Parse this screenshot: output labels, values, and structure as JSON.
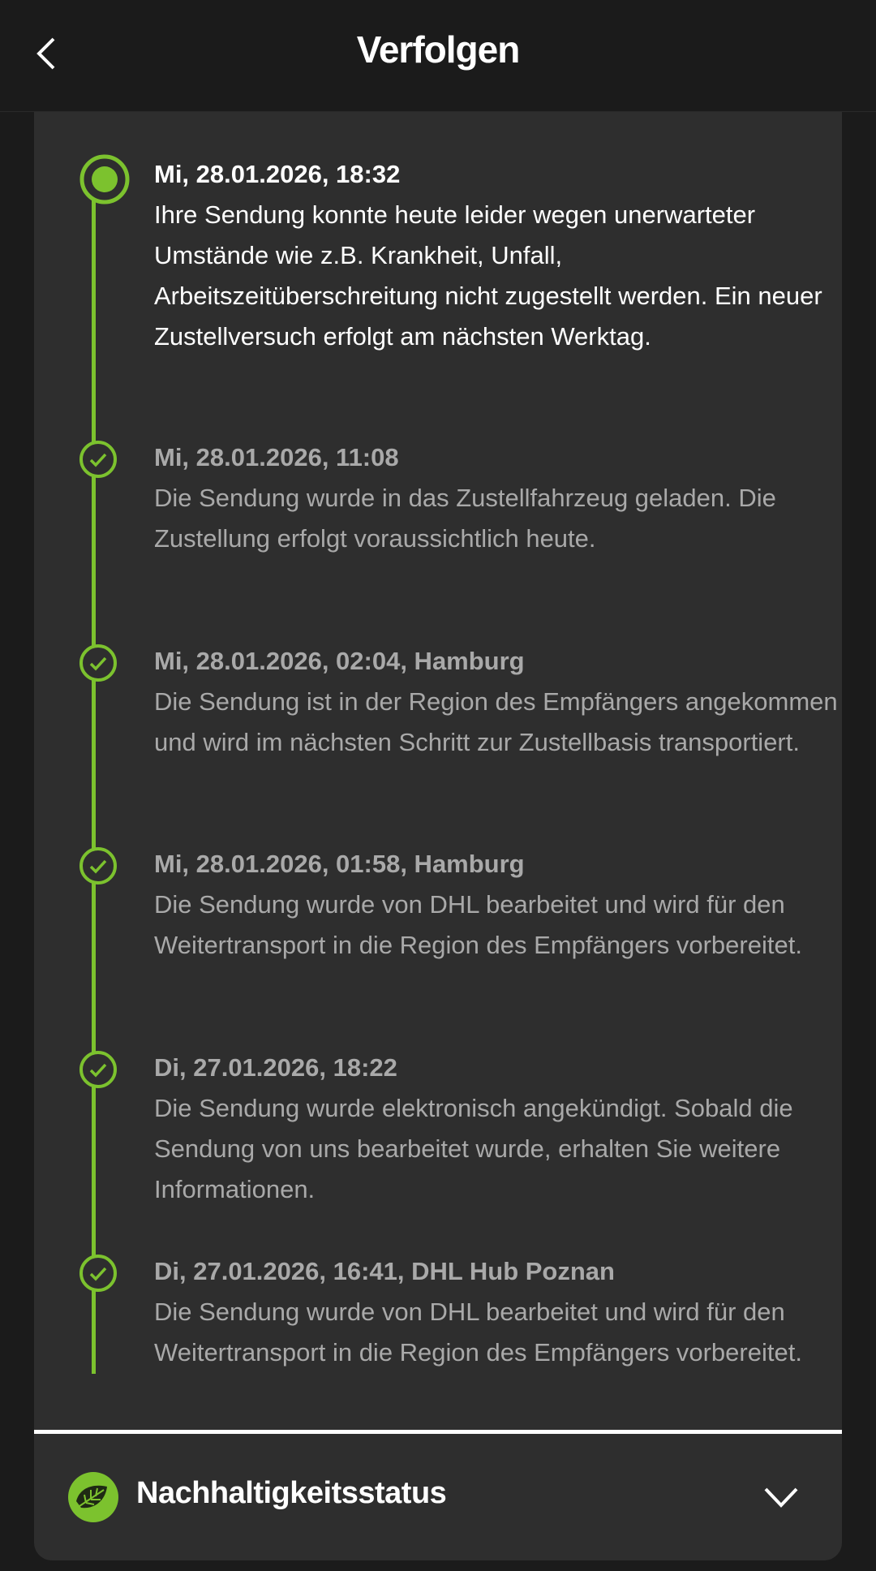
{
  "header": {
    "title": "Verfolgen",
    "back_icon": "chevron-left-icon"
  },
  "colors": {
    "accent": "#7cc22e",
    "background": "#1b1b1b",
    "card": "#2e2e2e"
  },
  "timeline": [
    {
      "date": "Mi, 28.01.2026, 18:32",
      "message": "Ihre Sendung konnte heute leider wegen unerwarteter Umstände wie z.B. Krankheit, Unfall, Arbeitszeitüberschreitung nicht zugestellt werden. Ein neuer Zustellversuch erfolgt am nächsten Werktag.",
      "state": "current"
    },
    {
      "date": "Mi, 28.01.2026, 11:08",
      "message": "Die Sendung wurde in das Zustellfahrzeug geladen. Die Zustellung erfolgt voraussichtlich heute.",
      "state": "done"
    },
    {
      "date": "Mi, 28.01.2026, 02:04, Hamburg",
      "message": "Die Sendung ist in der Region des Empfängers angekommen und wird im nächsten Schritt zur Zustellbasis transportiert.",
      "state": "done"
    },
    {
      "date": "Mi, 28.01.2026, 01:58, Hamburg",
      "message": "Die Sendung wurde von DHL bearbeitet und wird für den Weitertransport in die Region des Empfängers vorbereitet.",
      "state": "done"
    },
    {
      "date": "Di, 27.01.2026, 18:22",
      "message": "Die Sendung wurde elektronisch angekündigt. Sobald die Sendung von uns bearbeitet wurde, erhalten Sie weitere Informationen.",
      "state": "done"
    },
    {
      "date": "Di, 27.01.2026, 16:41, DHL Hub Poznan",
      "message": "Die Sendung wurde von DHL bearbeitet und wird für den Weitertransport in die Region des Empfängers vorbereitet.",
      "state": "done"
    }
  ],
  "sustainability": {
    "label": "Nachhaltigkeitsstatus",
    "icon": "leaf-icon",
    "expand_icon": "chevron-down-icon"
  }
}
